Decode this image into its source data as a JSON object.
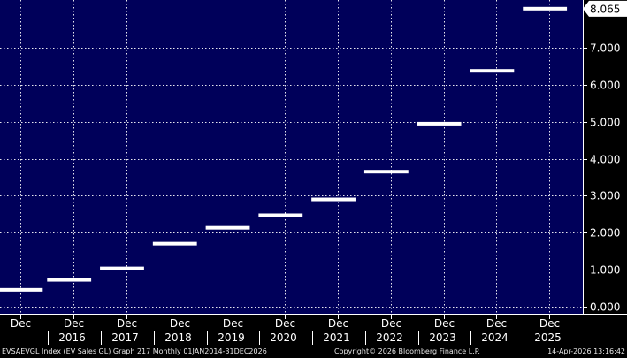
{
  "chart_data": {
    "type": "step",
    "title": "",
    "xlabel": "",
    "ylabel": "",
    "ylim": [
      -0.2,
      8.3
    ],
    "y_ticks": [
      0.0,
      1.0,
      2.0,
      3.0,
      4.0,
      5.0,
      6.0,
      7.0
    ],
    "y_tick_labels": [
      "0.000",
      "1.000",
      "2.000",
      "3.000",
      "4.000",
      "5.000",
      "6.000",
      "7.000"
    ],
    "x_range": [
      "2015-07-01",
      "2026-08-01"
    ],
    "x_month_ticks": [
      "2015-12",
      "2016-12",
      "2017-12",
      "2018-12",
      "2019-12",
      "2020-12",
      "2021-12",
      "2022-12",
      "2023-12",
      "2024-12",
      "2025-12"
    ],
    "x_month_label": "Dec",
    "x_year_labels": [
      "2016",
      "2017",
      "2018",
      "2019",
      "2020",
      "2021",
      "2022",
      "2023",
      "2024",
      "2025"
    ],
    "series": [
      {
        "points": [
          {
            "start": "2015-07-01",
            "end": "2016-05-01",
            "y": 0.45
          },
          {
            "start": "2016-06-01",
            "end": "2017-04-01",
            "y": 0.72
          },
          {
            "start": "2017-06-01",
            "end": "2018-04-01",
            "y": 1.03
          },
          {
            "start": "2018-06-01",
            "end": "2019-04-01",
            "y": 1.7
          },
          {
            "start": "2019-06-01",
            "end": "2020-04-01",
            "y": 2.13
          },
          {
            "start": "2020-06-01",
            "end": "2021-04-01",
            "y": 2.47
          },
          {
            "start": "2021-06-01",
            "end": "2022-04-01",
            "y": 2.9
          },
          {
            "start": "2022-06-01",
            "end": "2023-04-01",
            "y": 3.65
          },
          {
            "start": "2023-06-01",
            "end": "2024-04-01",
            "y": 4.95
          },
          {
            "start": "2024-06-01",
            "end": "2025-04-01",
            "y": 6.38
          },
          {
            "start": "2025-06-01",
            "end": "2026-04-01",
            "y": 8.065
          }
        ]
      }
    ],
    "last_value_label": "8.065",
    "grid": true,
    "colors": {
      "background": "#00005a",
      "grid": "#ffffff",
      "series": "#ffffff",
      "axis_text": "#ffffff"
    }
  },
  "footer": {
    "left": "EVSAEVGL Index (EV Sales GL) Graph 217 Monthly 01JAN2014-31DEC2026",
    "center": "Copyright© 2026 Bloomberg Finance L.P.",
    "right": "14-Apr-2026 13:16:42"
  }
}
